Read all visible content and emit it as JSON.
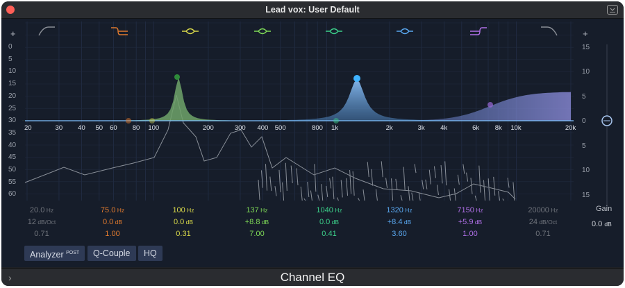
{
  "window": {
    "title": "Lead vox: User Default",
    "footer_title": "Channel EQ"
  },
  "colors": {
    "background": "#161d2a",
    "curve": "#7fc3ff",
    "analyzer": "#8a9099"
  },
  "left_scale": [
    "0",
    "5",
    "10",
    "15",
    "20",
    "25",
    "30",
    "35",
    "40",
    "45",
    "50",
    "55",
    "60"
  ],
  "right_scale": [
    "15",
    "10",
    "5",
    "0",
    "5",
    "10",
    "15"
  ],
  "freq_labels": [
    "20",
    "30",
    "40",
    "50",
    "60",
    "80",
    "100",
    "200",
    "300",
    "400",
    "500",
    "800",
    "1k",
    "2k",
    "3k",
    "4k",
    "6k",
    "8k",
    "10k",
    "20k"
  ],
  "bands": [
    {
      "name": "band-1-low-cut",
      "freq": "20.0",
      "freq_unit": "Hz",
      "gain": "12",
      "gain_unit": "dB/Oct",
      "q": "0.71",
      "color": "#8a8e96",
      "icon": "low-cut-icon"
    },
    {
      "name": "band-2-low-shelf",
      "freq": "75.0",
      "freq_unit": "Hz",
      "gain": "0.0",
      "gain_unit": "dB",
      "q": "1.00",
      "color": "#e07a2e",
      "icon": "low-shelf-icon"
    },
    {
      "name": "band-3-peak",
      "freq": "100",
      "freq_unit": "Hz",
      "gain": "0.0",
      "gain_unit": "dB",
      "q": "0.31",
      "color": "#d8d84a",
      "icon": "bell-icon"
    },
    {
      "name": "band-4-peak",
      "freq": "137",
      "freq_unit": "Hz",
      "gain": "+8.8",
      "gain_unit": "dB",
      "q": "7.00",
      "color": "#7ed957",
      "icon": "bell-icon"
    },
    {
      "name": "band-5-peak",
      "freq": "1040",
      "freq_unit": "Hz",
      "gain": "0.0",
      "gain_unit": "dB",
      "q": "0.41",
      "color": "#3cd08a",
      "icon": "bell-icon"
    },
    {
      "name": "band-6-peak",
      "freq": "1320",
      "freq_unit": "Hz",
      "gain": "+8.4",
      "gain_unit": "dB",
      "q": "3.60",
      "color": "#5aa8f0",
      "icon": "bell-icon"
    },
    {
      "name": "band-7-high-shelf",
      "freq": "7150",
      "freq_unit": "Hz",
      "gain": "+5.9",
      "gain_unit": "dB",
      "q": "1.00",
      "color": "#b070e8",
      "icon": "high-shelf-icon"
    },
    {
      "name": "band-8-high-cut",
      "freq": "20000",
      "freq_unit": "Hz",
      "gain": "24",
      "gain_unit": "dB/Oct",
      "q": "0.71",
      "color": "#8a8e96",
      "icon": "high-cut-icon"
    }
  ],
  "gain": {
    "label": "Gain",
    "value": "0.0",
    "unit": "dB"
  },
  "buttons": {
    "analyzer": "Analyzer",
    "analyzer_sup": "POST",
    "qcouple": "Q-Couple",
    "hq": "HQ"
  }
}
